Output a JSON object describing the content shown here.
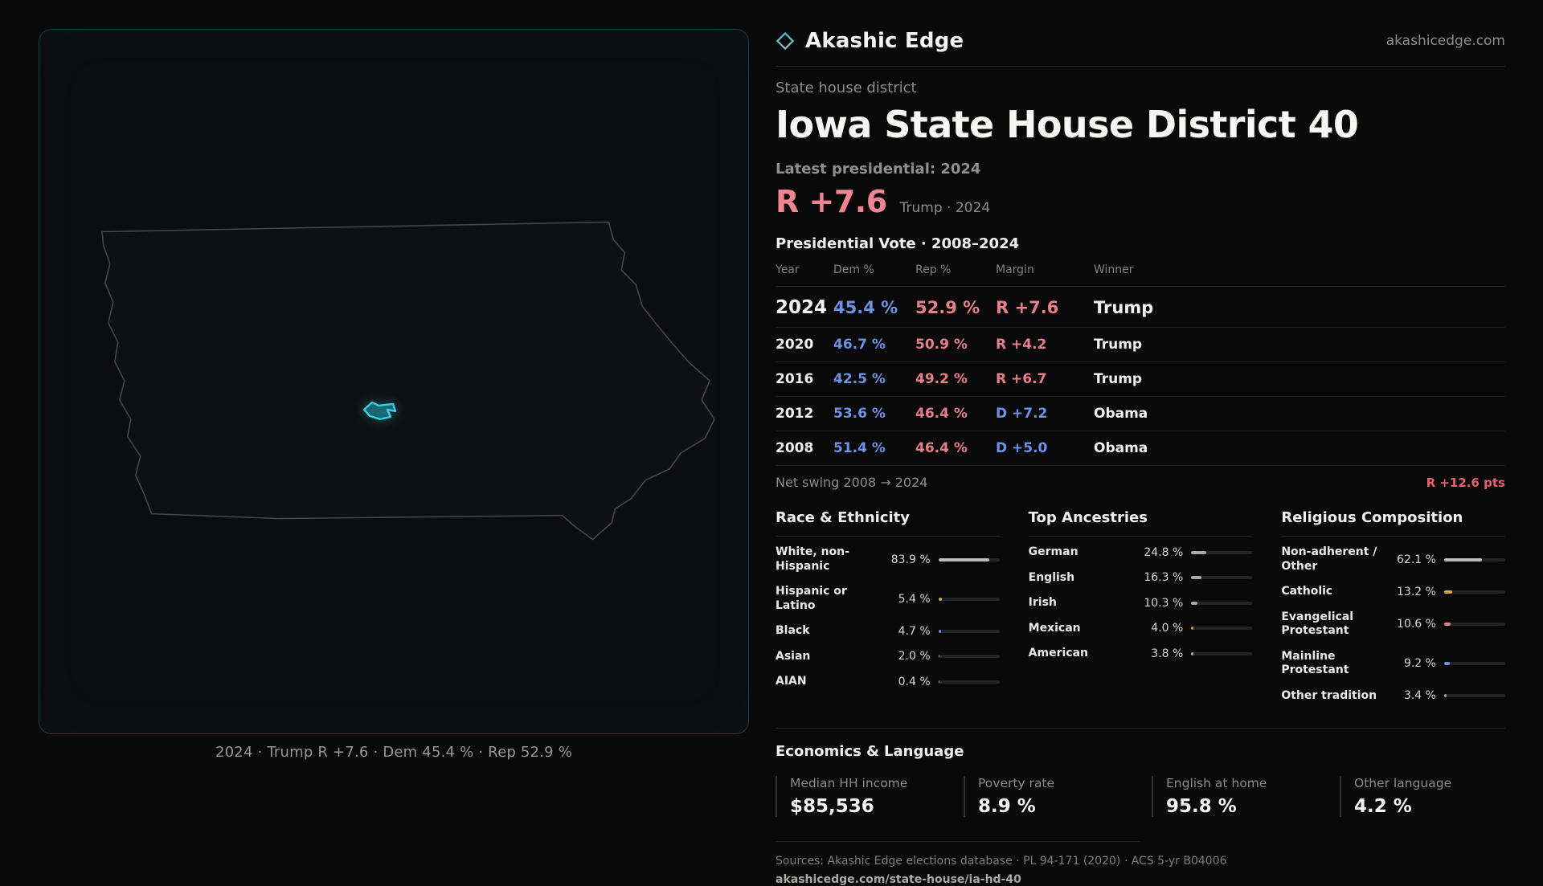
{
  "brand": {
    "name": "Akashic Edge",
    "domain": "akashicedge.com"
  },
  "header": {
    "kicker": "State house district",
    "title": "Iowa State House District 40",
    "latest_label": "Latest presidential: 2024",
    "headline_margin": "R +7.6",
    "headline_context": "Trump · 2024"
  },
  "map": {
    "caption": "2024 · Trump  R +7.6 · Dem 45.4 % · Rep 52.9 %"
  },
  "vote_table": {
    "title": "Presidential Vote · 2008–2024",
    "columns": [
      "Year",
      "Dem %",
      "Rep %",
      "Margin",
      "Winner"
    ],
    "rows": [
      {
        "year": "2024",
        "dem": "45.4 %",
        "rep": "52.9 %",
        "margin": "R +7.6",
        "party": "R",
        "winner": "Trump"
      },
      {
        "year": "2020",
        "dem": "46.7 %",
        "rep": "50.9 %",
        "margin": "R +4.2",
        "party": "R",
        "winner": "Trump"
      },
      {
        "year": "2016",
        "dem": "42.5 %",
        "rep": "49.2 %",
        "margin": "R +6.7",
        "party": "R",
        "winner": "Trump"
      },
      {
        "year": "2012",
        "dem": "53.6 %",
        "rep": "46.4 %",
        "margin": "D +7.2",
        "party": "D",
        "winner": "Obama"
      },
      {
        "year": "2008",
        "dem": "51.4 %",
        "rep": "46.4 %",
        "margin": "D +5.0",
        "party": "D",
        "winner": "Obama"
      }
    ],
    "net_swing_label": "Net swing 2008 → 2024",
    "net_swing_value": "R +12.6 pts"
  },
  "demographics": {
    "race": {
      "title": "Race & Ethnicity",
      "rows": [
        {
          "label": "White, non-Hispanic",
          "value": "83.9 %",
          "pct": 83.9,
          "color": "#babcbe"
        },
        {
          "label": "Hispanic or Latino",
          "value": "5.4 %",
          "pct": 5.4,
          "color": "#d9a93f"
        },
        {
          "label": "Black",
          "value": "4.7 %",
          "pct": 4.7,
          "color": "#7d88e8"
        },
        {
          "label": "Asian",
          "value": "2.0 %",
          "pct": 2.0,
          "color": "#9ba1a5"
        },
        {
          "label": "AIAN",
          "value": "0.4 %",
          "pct": 0.4,
          "color": "#9ba1a5"
        }
      ]
    },
    "ancestries": {
      "title": "Top Ancestries",
      "rows": [
        {
          "label": "German",
          "value": "24.8 %",
          "pct": 24.8,
          "color": "#a7a9ab"
        },
        {
          "label": "English",
          "value": "16.3 %",
          "pct": 16.3,
          "color": "#a7a9ab"
        },
        {
          "label": "Irish",
          "value": "10.3 %",
          "pct": 10.3,
          "color": "#a7a9ab"
        },
        {
          "label": "Mexican",
          "value": "4.0 %",
          "pct": 4.0,
          "color": "#d98f3f"
        },
        {
          "label": "American",
          "value": "3.8 %",
          "pct": 3.8,
          "color": "#a7a9ab"
        }
      ]
    },
    "religion": {
      "title": "Religious Composition",
      "rows": [
        {
          "label": "Non-adherent / Other",
          "value": "62.1 %",
          "pct": 62.1,
          "color": "#babcbe"
        },
        {
          "label": "Catholic",
          "value": "13.2 %",
          "pct": 13.2,
          "color": "#d9a93f"
        },
        {
          "label": "Evangelical Protestant",
          "value": "10.6 %",
          "pct": 10.6,
          "color": "#e8828c"
        },
        {
          "label": "Mainline Protestant",
          "value": "9.2 %",
          "pct": 9.2,
          "color": "#6e91e6"
        },
        {
          "label": "Other tradition",
          "value": "3.4 %",
          "pct": 3.4,
          "color": "#9ba1a5"
        }
      ]
    }
  },
  "economics": {
    "title": "Economics & Language",
    "stats": [
      {
        "label": "Median HH income",
        "value": "$85,536"
      },
      {
        "label": "Poverty rate",
        "value": "8.9 %"
      },
      {
        "label": "English at home",
        "value": "95.8 %"
      },
      {
        "label": "Other language",
        "value": "4.2 %"
      }
    ]
  },
  "footer": {
    "sources": "Sources: Akashic Edge elections database · PL 94-171 (2020) · ACS 5-yr B04006",
    "permalink": "akashicedge.com/state-house/ia-hd-40"
  },
  "chart_data": [
    {
      "type": "table",
      "title": "Presidential Vote · 2008–2024",
      "columns": [
        "Year",
        "Dem %",
        "Rep %",
        "Margin",
        "Winner"
      ],
      "rows": [
        [
          "2024",
          45.4,
          52.9,
          "R +7.6",
          "Trump"
        ],
        [
          "2020",
          46.7,
          50.9,
          "R +4.2",
          "Trump"
        ],
        [
          "2016",
          42.5,
          49.2,
          "R +6.7",
          "Trump"
        ],
        [
          "2012",
          53.6,
          46.4,
          "D +7.2",
          "Obama"
        ],
        [
          "2008",
          51.4,
          46.4,
          "D +5.0",
          "Obama"
        ]
      ],
      "note": "Net swing 2008 → 2024: R +12.6 pts"
    },
    {
      "type": "bar",
      "title": "Race & Ethnicity",
      "categories": [
        "White, non-Hispanic",
        "Hispanic or Latino",
        "Black",
        "Asian",
        "AIAN"
      ],
      "values": [
        83.9,
        5.4,
        4.7,
        2.0,
        0.4
      ],
      "unit": "%",
      "xlim": [
        0,
        100
      ]
    },
    {
      "type": "bar",
      "title": "Top Ancestries",
      "categories": [
        "German",
        "English",
        "Irish",
        "Mexican",
        "American"
      ],
      "values": [
        24.8,
        16.3,
        10.3,
        4.0,
        3.8
      ],
      "unit": "%",
      "xlim": [
        0,
        100
      ]
    },
    {
      "type": "bar",
      "title": "Religious Composition",
      "categories": [
        "Non-adherent / Other",
        "Catholic",
        "Evangelical Protestant",
        "Mainline Protestant",
        "Other tradition"
      ],
      "values": [
        62.1,
        13.2,
        10.6,
        9.2,
        3.4
      ],
      "unit": "%",
      "xlim": [
        0,
        100
      ]
    },
    {
      "type": "table",
      "title": "Economics & Language",
      "columns": [
        "Median HH income",
        "Poverty rate",
        "English at home",
        "Other language"
      ],
      "rows": [
        [
          "$85,536",
          "8.9 %",
          "95.8 %",
          "4.2 %"
        ]
      ]
    }
  ]
}
